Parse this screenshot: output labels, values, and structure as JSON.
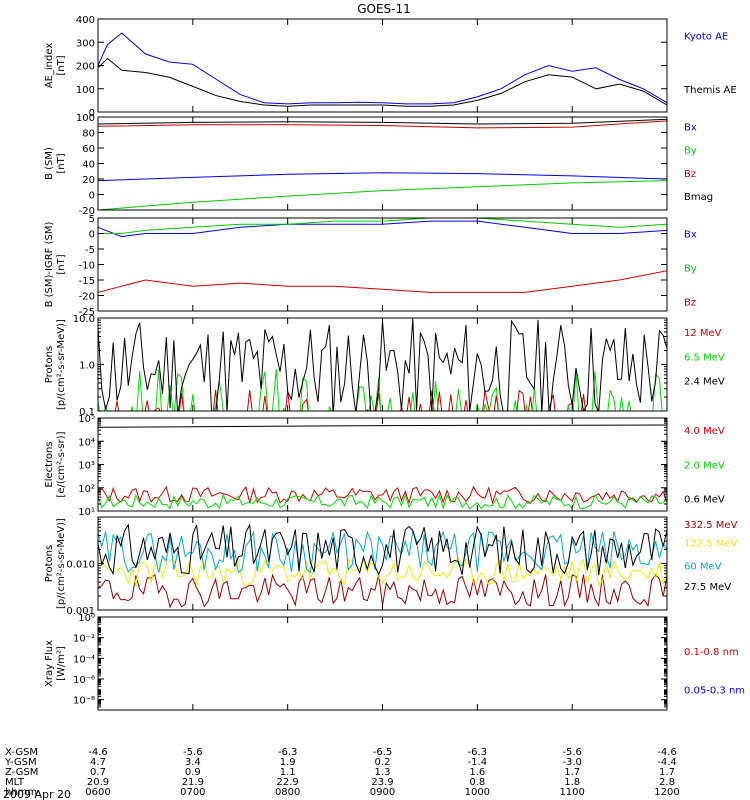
{
  "figure": {
    "title": "GOES-11",
    "date": "2009 Apr 20",
    "ephemeris": {
      "labels": [
        "X-GSM",
        "Y-GSM",
        "Z-GSM",
        "MLT",
        "hhmm"
      ],
      "columns": [
        [
          "-4.6",
          "4.7",
          "0.7",
          "20.9",
          "0600"
        ],
        [
          "-5.6",
          "3.4",
          "0.9",
          "21.9",
          "0700"
        ],
        [
          "-6.3",
          "1.9",
          "1.1",
          "22.9",
          "0800"
        ],
        [
          "-6.5",
          "0.2",
          "1.3",
          "23.9",
          "0900"
        ],
        [
          "-6.3",
          "-1.4",
          "1.6",
          "0.8",
          "1000"
        ],
        [
          "-5.6",
          "-3.0",
          "1.7",
          "1.8",
          "1100"
        ],
        [
          "-4.6",
          "-4.4",
          "1.7",
          "2.8",
          "1200"
        ]
      ]
    }
  },
  "chart_data": [
    {
      "type": "line",
      "ylabel": [
        "AE_index",
        "[nT]"
      ],
      "ylim": [
        0,
        400
      ],
      "ticks": [
        {
          "v": 0,
          "t": "0"
        },
        {
          "v": 100,
          "t": "100"
        },
        {
          "v": 200,
          "t": "200"
        },
        {
          "v": 300,
          "t": "300"
        },
        {
          "v": 400,
          "t": "400"
        }
      ],
      "x": [
        6.0,
        6.1,
        6.25,
        6.5,
        6.75,
        7.0,
        7.25,
        7.5,
        7.75,
        8.0,
        8.25,
        8.5,
        8.75,
        9.0,
        9.25,
        9.5,
        9.75,
        10.0,
        10.25,
        10.5,
        10.75,
        11.0,
        11.25,
        11.5,
        11.75,
        12.0
      ],
      "series": [
        {
          "name": "Kyoto AE",
          "color": "#0000ee",
          "label_at": 330,
          "values": [
            200,
            290,
            340,
            250,
            215,
            205,
            140,
            75,
            40,
            35,
            40,
            40,
            42,
            40,
            35,
            35,
            40,
            65,
            100,
            160,
            200,
            175,
            190,
            140,
            100,
            40
          ]
        },
        {
          "name": "Themis AE",
          "color": "#000000",
          "label_at": 100,
          "values": [
            190,
            230,
            180,
            170,
            150,
            110,
            70,
            45,
            30,
            25,
            30,
            30,
            30,
            30,
            25,
            25,
            30,
            50,
            80,
            130,
            160,
            150,
            100,
            120,
            90,
            30
          ]
        }
      ]
    },
    {
      "type": "line",
      "ylabel": [
        "B (SM)",
        "[nT]"
      ],
      "ylim": [
        -20,
        100
      ],
      "ticks": [
        {
          "v": -20,
          "t": "-20"
        },
        {
          "v": 0,
          "t": "0"
        },
        {
          "v": 20,
          "t": "20"
        },
        {
          "v": 40,
          "t": "40"
        },
        {
          "v": 60,
          "t": "60"
        },
        {
          "v": 80,
          "t": "80"
        },
        {
          "v": 100,
          "t": "100"
        }
      ],
      "x": [
        6.0,
        7.0,
        8.0,
        9.0,
        10.0,
        11.0,
        12.0
      ],
      "series": [
        {
          "name": "Bx",
          "color": "#0000ee",
          "label_at": 88,
          "values": [
            18,
            22,
            26,
            28,
            27,
            24,
            20
          ]
        },
        {
          "name": "By",
          "color": "#00cc00",
          "label_at": 58,
          "values": [
            -20,
            -10,
            -2,
            5,
            10,
            15,
            18
          ]
        },
        {
          "name": "Bz",
          "color": "#cc0000",
          "label_at": 28,
          "values": [
            88,
            90,
            90,
            89,
            86,
            87,
            95
          ]
        },
        {
          "name": "Bmag",
          "color": "#000000",
          "label_at": -2,
          "values": [
            91,
            93,
            94,
            93,
            91,
            92,
            97
          ]
        }
      ]
    },
    {
      "type": "line",
      "ylabel": [
        "B (SM)-IGRF (SM)",
        "[nT]"
      ],
      "ylim": [
        -25,
        5
      ],
      "ticks": [
        {
          "v": -25,
          "t": "-25"
        },
        {
          "v": -20,
          "t": "-20"
        },
        {
          "v": -15,
          "t": "-15"
        },
        {
          "v": -10,
          "t": "-10"
        },
        {
          "v": -5,
          "t": "-5"
        },
        {
          "v": 0,
          "t": "0"
        },
        {
          "v": 5,
          "t": "5"
        }
      ],
      "x": [
        6.0,
        6.25,
        6.5,
        7.0,
        7.5,
        8.0,
        8.5,
        9.0,
        9.5,
        10.0,
        10.5,
        11.0,
        11.5,
        12.0
      ],
      "series": [
        {
          "name": "Bx",
          "color": "#0000ee",
          "label_at": 0,
          "values": [
            2,
            -1,
            0,
            0,
            2,
            3,
            3,
            3,
            4,
            4,
            2,
            0,
            0,
            1
          ]
        },
        {
          "name": "By",
          "color": "#00cc00",
          "label_at": -11,
          "values": [
            0,
            0,
            1,
            2,
            3,
            3,
            4,
            4,
            5,
            5,
            4,
            3,
            2,
            3
          ]
        },
        {
          "name": "Bz",
          "color": "#cc0000",
          "label_at": -22,
          "values": [
            -19,
            -17,
            -15,
            -17,
            -16,
            -17,
            -17,
            -18,
            -19,
            -19,
            -19,
            -17,
            -15,
            -12
          ]
        }
      ]
    },
    {
      "type": "line",
      "ylabel": [
        "Protons",
        "[p/(cm²-s-sr-MeV)]"
      ],
      "log": true,
      "ylim": [
        0.1,
        10
      ],
      "ticks": [
        {
          "v": 0.1,
          "t": "0.1"
        },
        {
          "v": 1,
          "t": "1.0"
        },
        {
          "v": 10,
          "t": "10.0"
        }
      ],
      "series": [
        {
          "name": "12 MeV",
          "color": "#cc0000",
          "label_at": 5,
          "noise": {
            "base": 0.1,
            "spread": 0.5,
            "seed": 3,
            "spiky": true
          }
        },
        {
          "name": "6.5 MeV",
          "color": "#00dd00",
          "label_at": 1.5,
          "noise": {
            "base": 0.13,
            "spread": 0.8,
            "seed": 7,
            "spiky": true
          }
        },
        {
          "name": "2.4 MeV",
          "color": "#000000",
          "label_at": 0.45,
          "noise": {
            "base": 0.8,
            "spread": 1.1,
            "seed": 11
          }
        }
      ]
    },
    {
      "type": "line",
      "ylabel": [
        "Electrons",
        "[e/(cm²-s-sr)]"
      ],
      "log": true,
      "ylim": [
        10,
        100000
      ],
      "ticks": [
        {
          "v": 10,
          "t": "10¹"
        },
        {
          "v": 100,
          "t": "10²"
        },
        {
          "v": 1000,
          "t": "10³"
        },
        {
          "v": 10000,
          "t": "10⁴"
        },
        {
          "v": 100000,
          "t": "10⁵"
        }
      ],
      "series": [
        {
          "name": "4.0 MeV",
          "color": "#cc0000",
          "label_at": 30000,
          "noise": {
            "base": 50,
            "spread": 0.35,
            "seed": 13
          }
        },
        {
          "name": "2.0 MeV",
          "color": "#00dd00",
          "label_at": 1000,
          "noise": {
            "base": 25,
            "spread": 0.3,
            "seed": 17
          }
        },
        {
          "name": "0.6 MeV",
          "color": "#000000",
          "label_at": 35,
          "values": [
            40000,
            42000,
            45000,
            47000,
            48000,
            49000,
            50000
          ]
        }
      ]
    },
    {
      "type": "line",
      "ylabel": [
        "Protons",
        "[p/(cm²-s-sr-MeV)]"
      ],
      "log": true,
      "ylim": [
        0.001,
        0.1
      ],
      "ticks": [
        {
          "v": 0.001,
          "t": "0.001"
        },
        {
          "v": 0.01,
          "t": "0.010"
        },
        {
          "v": 0.1,
          "t": ""
        }
      ],
      "series": [
        {
          "name": "332.5 MeV",
          "color": "#990000",
          "label_at": 0.07,
          "noise": {
            "base": 0.0026,
            "spread": 0.35,
            "seed": 19
          }
        },
        {
          "name": "122.5 MeV",
          "color": "#eeee00",
          "label_at": 0.028,
          "noise": {
            "base": 0.0065,
            "spread": 0.3,
            "seed": 23
          }
        },
        {
          "name": "60 MeV",
          "color": "#00aadd",
          "label_at": 0.009,
          "noise": {
            "base": 0.018,
            "spread": 0.45,
            "seed": 29
          }
        },
        {
          "name": "27.5 MeV",
          "color": "#000000",
          "label_at": 0.0033,
          "noise": {
            "base": 0.02,
            "spread": 0.55,
            "seed": 31
          }
        }
      ]
    },
    {
      "type": "line",
      "ylabel": [
        "Xray  Flux",
        "[W/m²]"
      ],
      "log": true,
      "ylim": [
        1e-09,
        1
      ],
      "ticks": [
        {
          "v": 1,
          "t": "10⁰"
        },
        {
          "v": 0.01,
          "t": "10⁻²"
        },
        {
          "v": 0.0001,
          "t": "10⁻⁴"
        },
        {
          "v": 1e-06,
          "t": "10⁻⁶"
        },
        {
          "v": 1e-08,
          "t": "10⁻⁸"
        }
      ],
      "series": [
        {
          "name": "0.1-0.8 nm",
          "color": "#cc0000",
          "label_at": 0.0005
        },
        {
          "name": "0.05-0.3 nm",
          "color": "#0000ee",
          "label_at": 1e-07
        }
      ]
    }
  ]
}
